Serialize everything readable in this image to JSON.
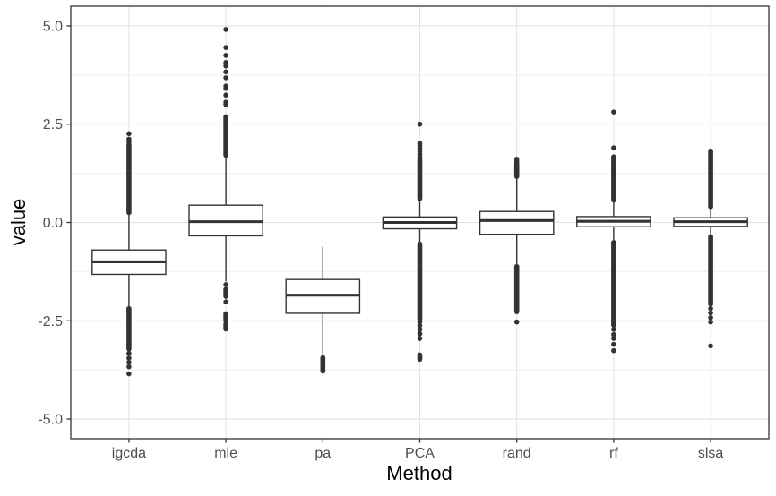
{
  "chart_data": {
    "type": "boxplot",
    "title": "",
    "xlabel": "Method",
    "ylabel": "value",
    "categories": [
      "igcda",
      "mle",
      "pa",
      "PCA",
      "rand",
      "rf",
      "slsa"
    ],
    "ylim": [
      -5.5,
      5.5
    ],
    "ytick_values": [
      5.0,
      2.5,
      0.0,
      -2.5,
      -5.0
    ],
    "ytick_labels": [
      "5.0",
      "2.5",
      "0.0",
      "-2.5",
      "-5.0"
    ],
    "yminor_values": [
      3.75,
      1.25,
      -1.25,
      -3.75
    ],
    "grid": true,
    "legend": null,
    "boxes": [
      {
        "name": "igcda",
        "q1": -1.32,
        "median": -1.0,
        "q3": -0.7,
        "whisker_low": -2.17,
        "whisker_high": 0.23,
        "outliers_high": [
          {
            "type": "column",
            "from": 0.25,
            "to": 1.98
          },
          {
            "type": "dots",
            "values": [
              2.05,
              2.12,
              2.26
            ]
          }
        ],
        "outliers_low": [
          {
            "type": "column",
            "from": -2.19,
            "to": -3.22
          },
          {
            "type": "dots",
            "values": [
              -3.33,
              -3.45,
              -3.56,
              -3.67,
              -3.85
            ]
          }
        ]
      },
      {
        "name": "mle",
        "q1": -0.34,
        "median": 0.02,
        "q3": 0.44,
        "whisker_low": -1.5,
        "whisker_high": 1.67,
        "outliers_high": [
          {
            "type": "column",
            "from": 1.71,
            "to": 2.69
          },
          {
            "type": "dots",
            "values": [
              3.0,
              3.06,
              3.24,
              3.41,
              3.47,
              3.68,
              3.83,
              3.98,
              4.07,
              4.25,
              4.45,
              4.91
            ]
          }
        ],
        "outliers_low": [
          {
            "type": "dots",
            "values": [
              -1.58,
              -2.02
            ]
          },
          {
            "type": "column",
            "from": -1.7,
            "to": -1.88
          },
          {
            "type": "column",
            "from": -2.32,
            "to": -2.5
          },
          {
            "type": "column",
            "from": -2.58,
            "to": -2.71
          }
        ]
      },
      {
        "name": "pa",
        "q1": -2.31,
        "median": -1.85,
        "q3": -1.45,
        "whisker_low": -3.4,
        "whisker_high": -0.62,
        "outliers_high": [],
        "outliers_low": [
          {
            "type": "column",
            "from": -3.44,
            "to": -3.78
          }
        ]
      },
      {
        "name": "PCA",
        "q1": -0.16,
        "median": 0.0,
        "q3": 0.14,
        "whisker_low": -0.53,
        "whisker_high": 0.59,
        "outliers_high": [
          {
            "type": "column",
            "from": 0.61,
            "to": 1.6
          },
          {
            "type": "dots",
            "values": [
              1.66,
              1.73,
              1.8,
              1.88,
              1.95,
              2.01,
              2.5
            ]
          }
        ],
        "outliers_low": [
          {
            "type": "column",
            "from": -0.55,
            "to": -2.46
          },
          {
            "type": "dots",
            "values": [
              -2.53,
              -2.62,
              -2.72,
              -2.83,
              -2.95
            ]
          },
          {
            "type": "column",
            "from": -3.37,
            "to": -3.48
          }
        ]
      },
      {
        "name": "rand",
        "q1": -0.3,
        "median": 0.05,
        "q3": 0.28,
        "whisker_low": -1.1,
        "whisker_high": 1.14,
        "outliers_high": [
          {
            "type": "column",
            "from": 1.17,
            "to": 1.5
          },
          {
            "type": "dots",
            "values": [
              1.55,
              1.61
            ]
          }
        ],
        "outliers_low": [
          {
            "type": "column",
            "from": -1.12,
            "to": -2.27
          },
          {
            "type": "dots",
            "values": [
              -2.53
            ]
          }
        ]
      },
      {
        "name": "rf",
        "q1": -0.11,
        "median": 0.03,
        "q3": 0.15,
        "whisker_low": -0.49,
        "whisker_high": 0.55,
        "outliers_high": [
          {
            "type": "column",
            "from": 0.57,
            "to": 1.63
          },
          {
            "type": "dots",
            "values": [
              1.67,
              1.9,
              2.81
            ]
          }
        ],
        "outliers_low": [
          {
            "type": "column",
            "from": -0.51,
            "to": -2.61
          },
          {
            "type": "dots",
            "values": [
              -2.72,
              -2.85,
              -2.95,
              -3.1,
              -3.26
            ]
          }
        ]
      },
      {
        "name": "slsa",
        "q1": -0.1,
        "median": 0.02,
        "q3": 0.12,
        "whisker_low": -0.34,
        "whisker_high": 0.38,
        "outliers_high": [
          {
            "type": "column",
            "from": 0.4,
            "to": 1.82
          }
        ],
        "outliers_low": [
          {
            "type": "column",
            "from": -0.36,
            "to": -2.08
          },
          {
            "type": "dots",
            "values": [
              -2.19,
              -2.3,
              -2.42,
              -2.53,
              -3.14
            ]
          }
        ]
      }
    ]
  },
  "style": {
    "background": "#ffffff",
    "panel_border": "#333333",
    "grid_major": "#e3e3e3",
    "grid_minor": "#f0f0f0",
    "box_stroke": "#333333",
    "box_fill": "#ffffff",
    "tick_color": "#333333",
    "tick_label_color": "#4d4d4d",
    "axis_title_color": "#000000"
  }
}
